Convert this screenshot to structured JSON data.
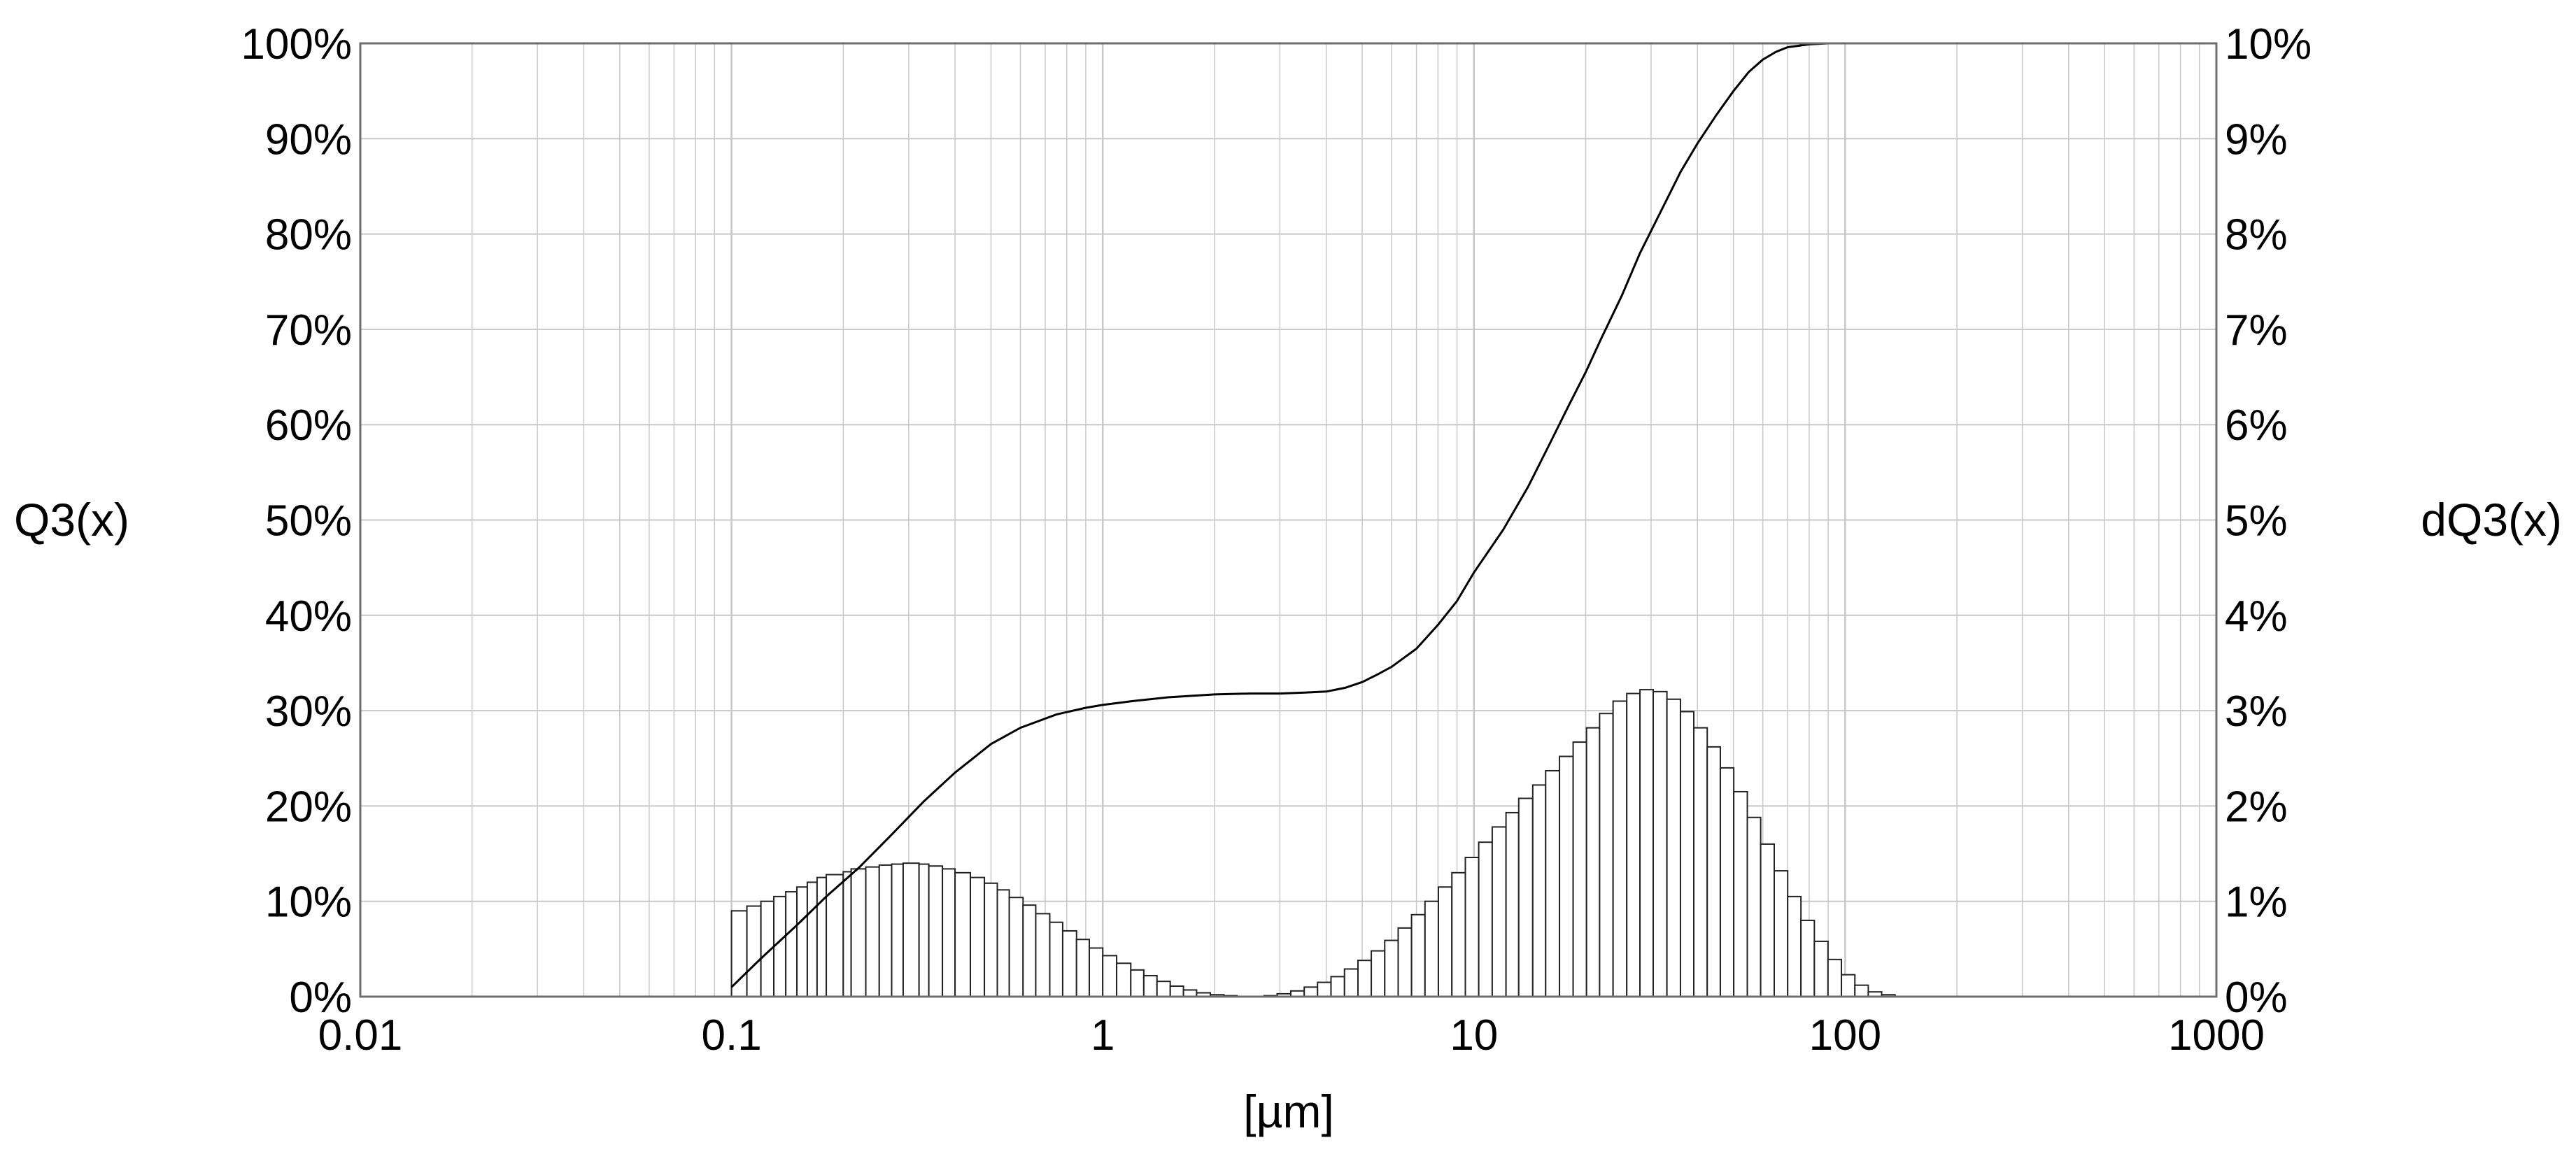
{
  "chart_data": {
    "type": "bar",
    "x_scale": "log",
    "xlim": [
      0.01,
      1000
    ],
    "x_ticks": [
      0.01,
      0.1,
      1,
      10,
      100,
      1000
    ],
    "x_tick_labels": [
      "0.01",
      "0.1",
      "1",
      "10",
      "100",
      "1000"
    ],
    "xlabel": "[µm]",
    "ylabel_left": "Q3(x)",
    "ylabel_right": "dQ3(x)",
    "ylim_left": [
      0,
      100
    ],
    "ylim_right": [
      0,
      10
    ],
    "y_ticks_left": [
      "0%",
      "10%",
      "20%",
      "30%",
      "40%",
      "50%",
      "60%",
      "70%",
      "80%",
      "90%",
      "100%"
    ],
    "y_ticks_right": [
      "0%",
      "1%",
      "2%",
      "3%",
      "4%",
      "5%",
      "6%",
      "7%",
      "8%",
      "9%",
      "10%"
    ],
    "grid": true,
    "colors": {
      "line": "#000000",
      "bar_fill": "#ffffff",
      "bar_edge": "#222222",
      "grid": "#c8c8c8"
    },
    "series": [
      {
        "type": "bar",
        "axis": "right",
        "x": [
          0.1,
          0.11,
          0.12,
          0.13,
          0.14,
          0.15,
          0.16,
          0.17,
          0.18,
          0.2,
          0.21,
          0.23,
          0.25,
          0.27,
          0.29,
          0.32,
          0.34,
          0.37,
          0.4,
          0.44,
          0.48,
          0.52,
          0.56,
          0.61,
          0.66,
          0.72,
          0.78,
          0.85,
          0.92,
          1.0,
          1.09,
          1.19,
          1.29,
          1.4,
          1.52,
          1.65,
          1.79,
          1.95,
          2.12,
          2.3,
          2.5,
          2.72,
          2.95,
          3.21,
          3.49,
          3.79,
          4.12,
          4.48,
          4.87,
          5.29,
          5.75,
          6.25,
          6.79,
          7.38,
          8.02,
          8.72,
          9.48,
          10.3,
          11.2,
          12.2,
          13.2,
          14.4,
          15.6,
          17.0,
          18.5,
          20.1,
          21.8,
          23.7,
          25.8,
          28.0,
          30.4,
          33.1,
          36.0,
          39.1,
          42.5,
          46.1,
          50.1,
          54.5,
          59.2,
          64.4,
          70.0,
          76.0,
          82.6,
          89.9,
          97.7,
          106.2,
          115.4,
          125.4
        ],
        "values": [
          0.9,
          0.95,
          1.0,
          1.05,
          1.1,
          1.15,
          1.2,
          1.25,
          1.28,
          1.31,
          1.34,
          1.36,
          1.38,
          1.39,
          1.4,
          1.39,
          1.37,
          1.34,
          1.3,
          1.25,
          1.19,
          1.12,
          1.04,
          0.96,
          0.87,
          0.78,
          0.69,
          0.6,
          0.51,
          0.43,
          0.35,
          0.28,
          0.22,
          0.16,
          0.11,
          0.07,
          0.04,
          0.02,
          0.01,
          0.0,
          0.0,
          0.01,
          0.03,
          0.06,
          0.1,
          0.15,
          0.21,
          0.29,
          0.38,
          0.48,
          0.59,
          0.72,
          0.86,
          1.0,
          1.15,
          1.3,
          1.46,
          1.62,
          1.78,
          1.93,
          2.08,
          2.22,
          2.37,
          2.52,
          2.67,
          2.82,
          2.97,
          3.1,
          3.18,
          3.22,
          3.2,
          3.12,
          2.99,
          2.82,
          2.62,
          2.4,
          2.15,
          1.88,
          1.6,
          1.32,
          1.05,
          0.8,
          0.58,
          0.39,
          0.23,
          0.12,
          0.05,
          0.02
        ]
      },
      {
        "type": "line",
        "axis": "left",
        "x": [
          0.1,
          0.12,
          0.15,
          0.18,
          0.22,
          0.27,
          0.33,
          0.4,
          0.5,
          0.6,
          0.75,
          0.9,
          1.0,
          1.2,
          1.5,
          2.0,
          2.5,
          3.0,
          3.5,
          4.0,
          4.5,
          5.0,
          5.5,
          6.0,
          7.0,
          8.0,
          9.0,
          10.0,
          12.0,
          14.0,
          16.0,
          18.0,
          20.0,
          22.0,
          25.0,
          28.0,
          32.0,
          36.0,
          40.0,
          45.0,
          50.0,
          55.0,
          60.0,
          65.0,
          70.0,
          80.0,
          90.0,
          100.0
        ],
        "values": [
          1,
          4,
          7.5,
          10.5,
          13.5,
          17,
          20.5,
          23.5,
          26.5,
          28.2,
          29.6,
          30.3,
          30.6,
          31.0,
          31.4,
          31.7,
          31.8,
          31.8,
          31.9,
          32.0,
          32.4,
          33.0,
          33.8,
          34.6,
          36.5,
          39.0,
          41.5,
          44.5,
          49.0,
          53.5,
          58.0,
          62.0,
          65.5,
          69.0,
          73.5,
          78.0,
          82.5,
          86.5,
          89.5,
          92.5,
          95.0,
          97.0,
          98.3,
          99.1,
          99.6,
          99.9,
          100.0,
          100.0
        ]
      }
    ]
  }
}
